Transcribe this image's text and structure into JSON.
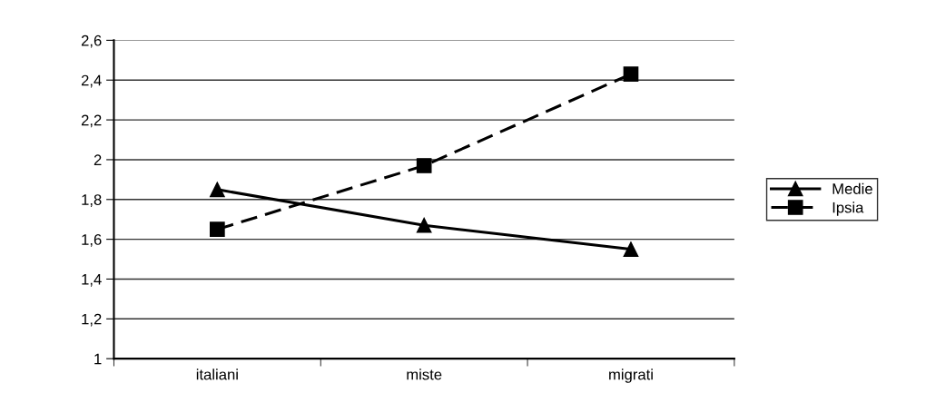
{
  "chart_data": {
    "type": "line",
    "categories": [
      "italiani",
      "miste",
      "migrati"
    ],
    "series": [
      {
        "name": "Medie",
        "color": "#000000",
        "values": [
          1.85,
          1.67,
          1.55
        ],
        "marker": "triangle",
        "line_style": "solid"
      },
      {
        "name": "Ipsia",
        "color": "#000000",
        "values": [
          1.65,
          1.97,
          2.43
        ],
        "marker": "square",
        "line_style": "dashed"
      }
    ],
    "ylim": [
      1,
      2.6
    ],
    "yticks": [
      {
        "value": 1,
        "label": "1"
      },
      {
        "value": 1.2,
        "label": "1,2"
      },
      {
        "value": 1.4,
        "label": "1,4"
      },
      {
        "value": 1.6,
        "label": "1,6"
      },
      {
        "value": 1.8,
        "label": "1,8"
      },
      {
        "value": 2,
        "label": "2"
      },
      {
        "value": 2.2,
        "label": "2,2"
      },
      {
        "value": 2.4,
        "label": "2,4"
      },
      {
        "value": 2.6,
        "label": "2,6"
      }
    ],
    "grid": "y",
    "legend": "right"
  }
}
